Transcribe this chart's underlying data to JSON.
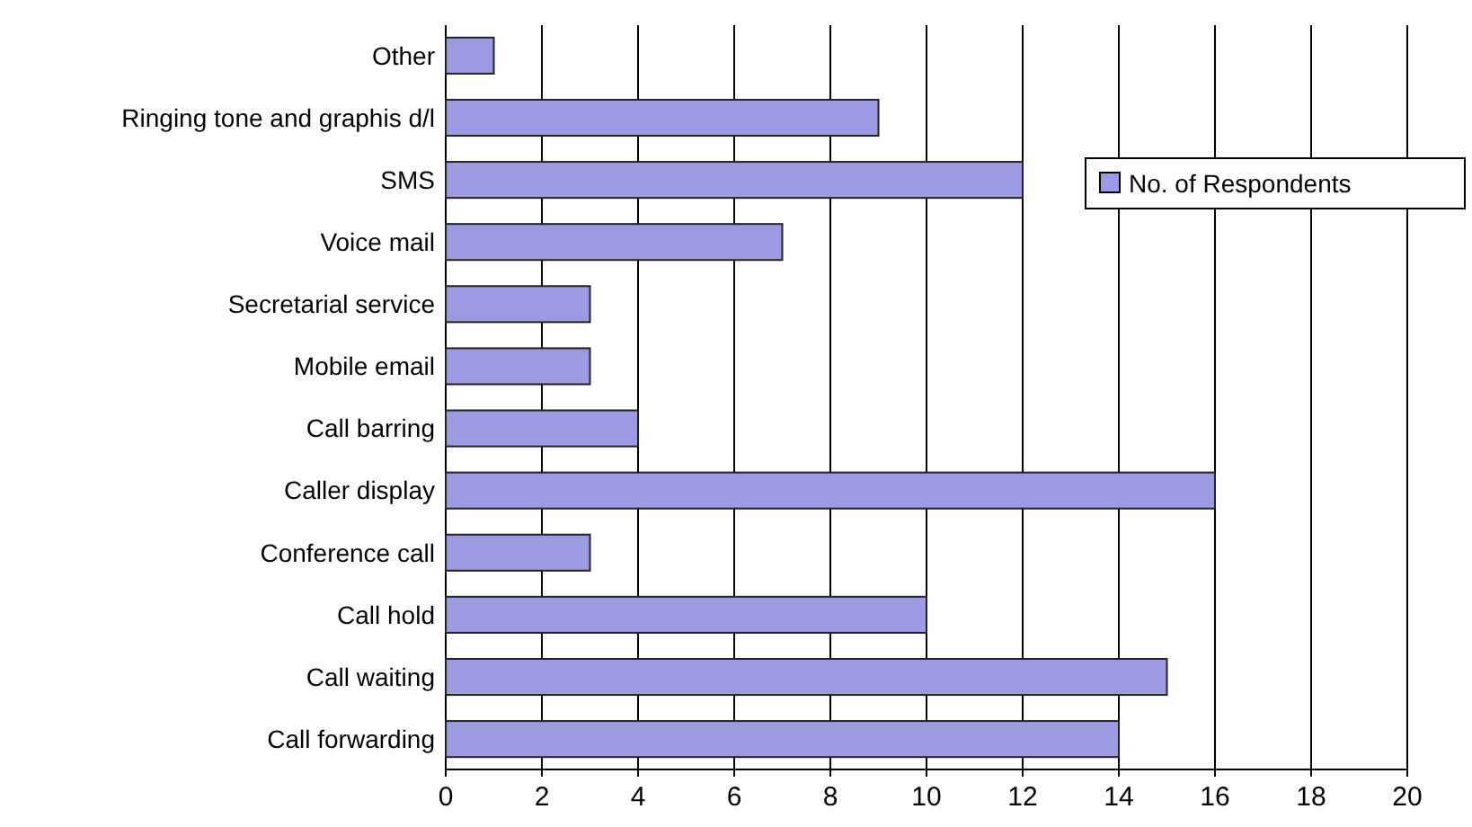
{
  "chart_data": {
    "type": "bar",
    "orientation": "horizontal",
    "categories": [
      "Other",
      "Ringing tone and graphis d/l",
      "SMS",
      "Voice mail",
      "Secretarial service",
      "Mobile email",
      "Call barring",
      "Caller display",
      "Conference call",
      "Call hold",
      "Call waiting",
      "Call forwarding"
    ],
    "series": [
      {
        "name": "No. of Respondents",
        "color": "#9c9ae0",
        "values": [
          1,
          9,
          12,
          7,
          3,
          3,
          4,
          16,
          3,
          10,
          15,
          14
        ]
      }
    ],
    "xlim": [
      0,
      20
    ],
    "xticks": [
      0,
      2,
      4,
      6,
      8,
      10,
      12,
      14,
      16,
      18,
      20
    ],
    "grid": "x",
    "legend": "right"
  }
}
